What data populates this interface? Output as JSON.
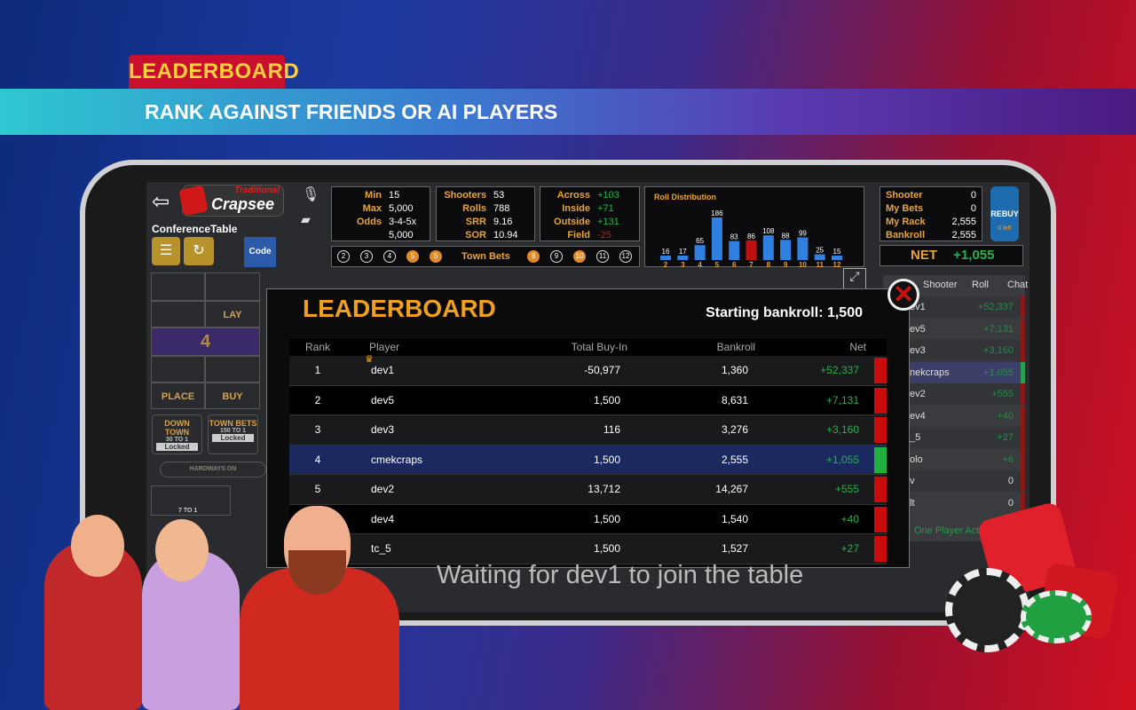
{
  "promo": {
    "tag": "LEADERBOARD",
    "subtitle": "RANK AGAINST FRIENDS OR AI PLAYERS"
  },
  "header": {
    "logo_small": "Traditional",
    "logo": "Crapsee",
    "table_name": "ConferenceTable",
    "code_label": "Code"
  },
  "limits": [
    {
      "label": "Min",
      "value": "15"
    },
    {
      "label": "Max",
      "value": "5,000"
    },
    {
      "label": "Odds",
      "value": "3-4-5x"
    },
    {
      "label": "",
      "value": "5,000"
    }
  ],
  "stats": [
    {
      "label": "Shooters",
      "value": "53"
    },
    {
      "label": "Rolls",
      "value": "788"
    },
    {
      "label": "SRR",
      "value": "9.16"
    },
    {
      "label": "SOR",
      "value": "10.94"
    }
  ],
  "bets": [
    {
      "label": "Across",
      "value": "+103"
    },
    {
      "label": "Inside",
      "value": "+71"
    },
    {
      "label": "Outside",
      "value": "+131"
    },
    {
      "label": "Field",
      "value": "-25"
    }
  ],
  "town_bets": {
    "label": "Town Bets",
    "numbers": [
      "2",
      "3",
      "4",
      "5",
      "6",
      "8",
      "9",
      "10",
      "11",
      "12"
    ],
    "active": [
      "5",
      "6",
      "8",
      "10"
    ]
  },
  "roll_distribution": {
    "title": "Roll Distribution",
    "categories": [
      "2",
      "3",
      "4",
      "5",
      "6",
      "7",
      "8",
      "9",
      "10",
      "11",
      "12"
    ],
    "values": [
      16,
      17,
      65,
      186,
      83,
      86,
      108,
      88,
      99,
      25,
      15
    ],
    "bar_color": "#2f80e0",
    "seven_color": "#c01010"
  },
  "account": [
    {
      "label": "Shooter",
      "value": "0"
    },
    {
      "label": "My Bets",
      "value": "0"
    },
    {
      "label": "My Rack",
      "value": "2,555"
    },
    {
      "label": "Bankroll",
      "value": "2,555"
    }
  ],
  "rebuy": {
    "label": "REBUY",
    "sub": "0 left"
  },
  "net": {
    "label": "NET",
    "value": "+1,055"
  },
  "table": {
    "lay": "LAY",
    "point": "4",
    "place": "PLACE",
    "buy": "BUY",
    "down_town": "DOWN TOWN",
    "down_town_odds": "30 TO 1",
    "town_bets": "TOWN BETS",
    "town_bets_odds": "150 TO 1",
    "locked": "Locked",
    "hardways": "HARDWAYS ON",
    "hard_odds": "7 TO 1"
  },
  "sidebar": {
    "tabs": [
      "Shooter",
      "Roll",
      "Chat"
    ],
    "rows": [
      {
        "name": "ev1",
        "net": "+52,337",
        "pos": true
      },
      {
        "name": "ev5",
        "net": "+7,131",
        "pos": true
      },
      {
        "name": "ev3",
        "net": "+3,160",
        "pos": true
      },
      {
        "name": "nekcraps",
        "net": "+1,055",
        "pos": true
      },
      {
        "name": "ev2",
        "net": "+555",
        "pos": true
      },
      {
        "name": "ev4",
        "net": "+40",
        "pos": true
      },
      {
        "name": "_5",
        "net": "+27",
        "pos": true
      },
      {
        "name": "olo",
        "net": "+6",
        "pos": true
      },
      {
        "name": "v",
        "net": "0",
        "pos": false
      },
      {
        "name": "lt",
        "net": "0",
        "pos": false
      }
    ],
    "footer": "One Player Acti"
  },
  "leaderboard": {
    "title": "LEADERBOARD",
    "starting": "Starting bankroll: 1,500",
    "columns": [
      "Rank",
      "Player",
      "Total Buy-In",
      "Bankroll",
      "Net"
    ],
    "rows": [
      {
        "rank": "1",
        "player": "dev1",
        "buyin": "-50,977",
        "bankroll": "1,360",
        "net": "+52,337",
        "flag": "red"
      },
      {
        "rank": "2",
        "player": "dev5",
        "buyin": "1,500",
        "bankroll": "8,631",
        "net": "+7,131",
        "flag": "red"
      },
      {
        "rank": "3",
        "player": "dev3",
        "buyin": "116",
        "bankroll": "3,276",
        "net": "+3,160",
        "flag": "red"
      },
      {
        "rank": "4",
        "player": "cmekcraps",
        "buyin": "1,500",
        "bankroll": "2,555",
        "net": "+1,055",
        "flag": "green"
      },
      {
        "rank": "5",
        "player": "dev2",
        "buyin": "13,712",
        "bankroll": "14,267",
        "net": "+555",
        "flag": "red"
      },
      {
        "rank": "",
        "player": "dev4",
        "buyin": "1,500",
        "bankroll": "1,540",
        "net": "+40",
        "flag": "red"
      },
      {
        "rank": "",
        "player": "tc_5",
        "buyin": "1,500",
        "bankroll": "1,527",
        "net": "+27",
        "flag": "red"
      }
    ]
  },
  "status": "Waiting for dev1 to join the table"
}
